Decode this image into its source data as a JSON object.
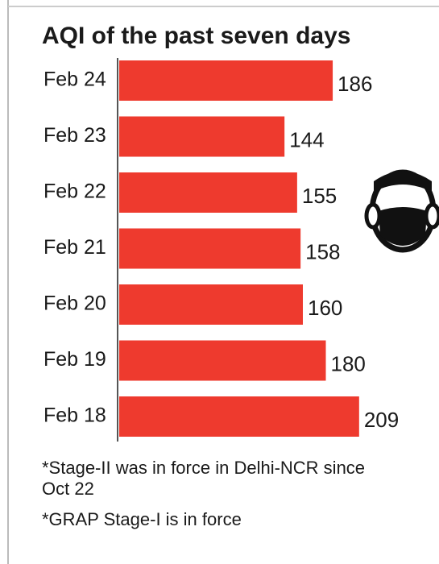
{
  "chart_data": {
    "type": "bar",
    "orientation": "horizontal",
    "title": "AQI of the past seven days",
    "categories": [
      "Feb 24",
      "Feb 23",
      "Feb 22",
      "Feb 21",
      "Feb 20",
      "Feb 19",
      "Feb 18"
    ],
    "values": [
      186,
      144,
      155,
      158,
      160,
      180,
      209
    ],
    "color": "#ee3a2e",
    "notes": [
      "*Stage-II was in force in Delhi-NCR since Oct 22",
      "*GRAP Stage-I is in force"
    ]
  }
}
